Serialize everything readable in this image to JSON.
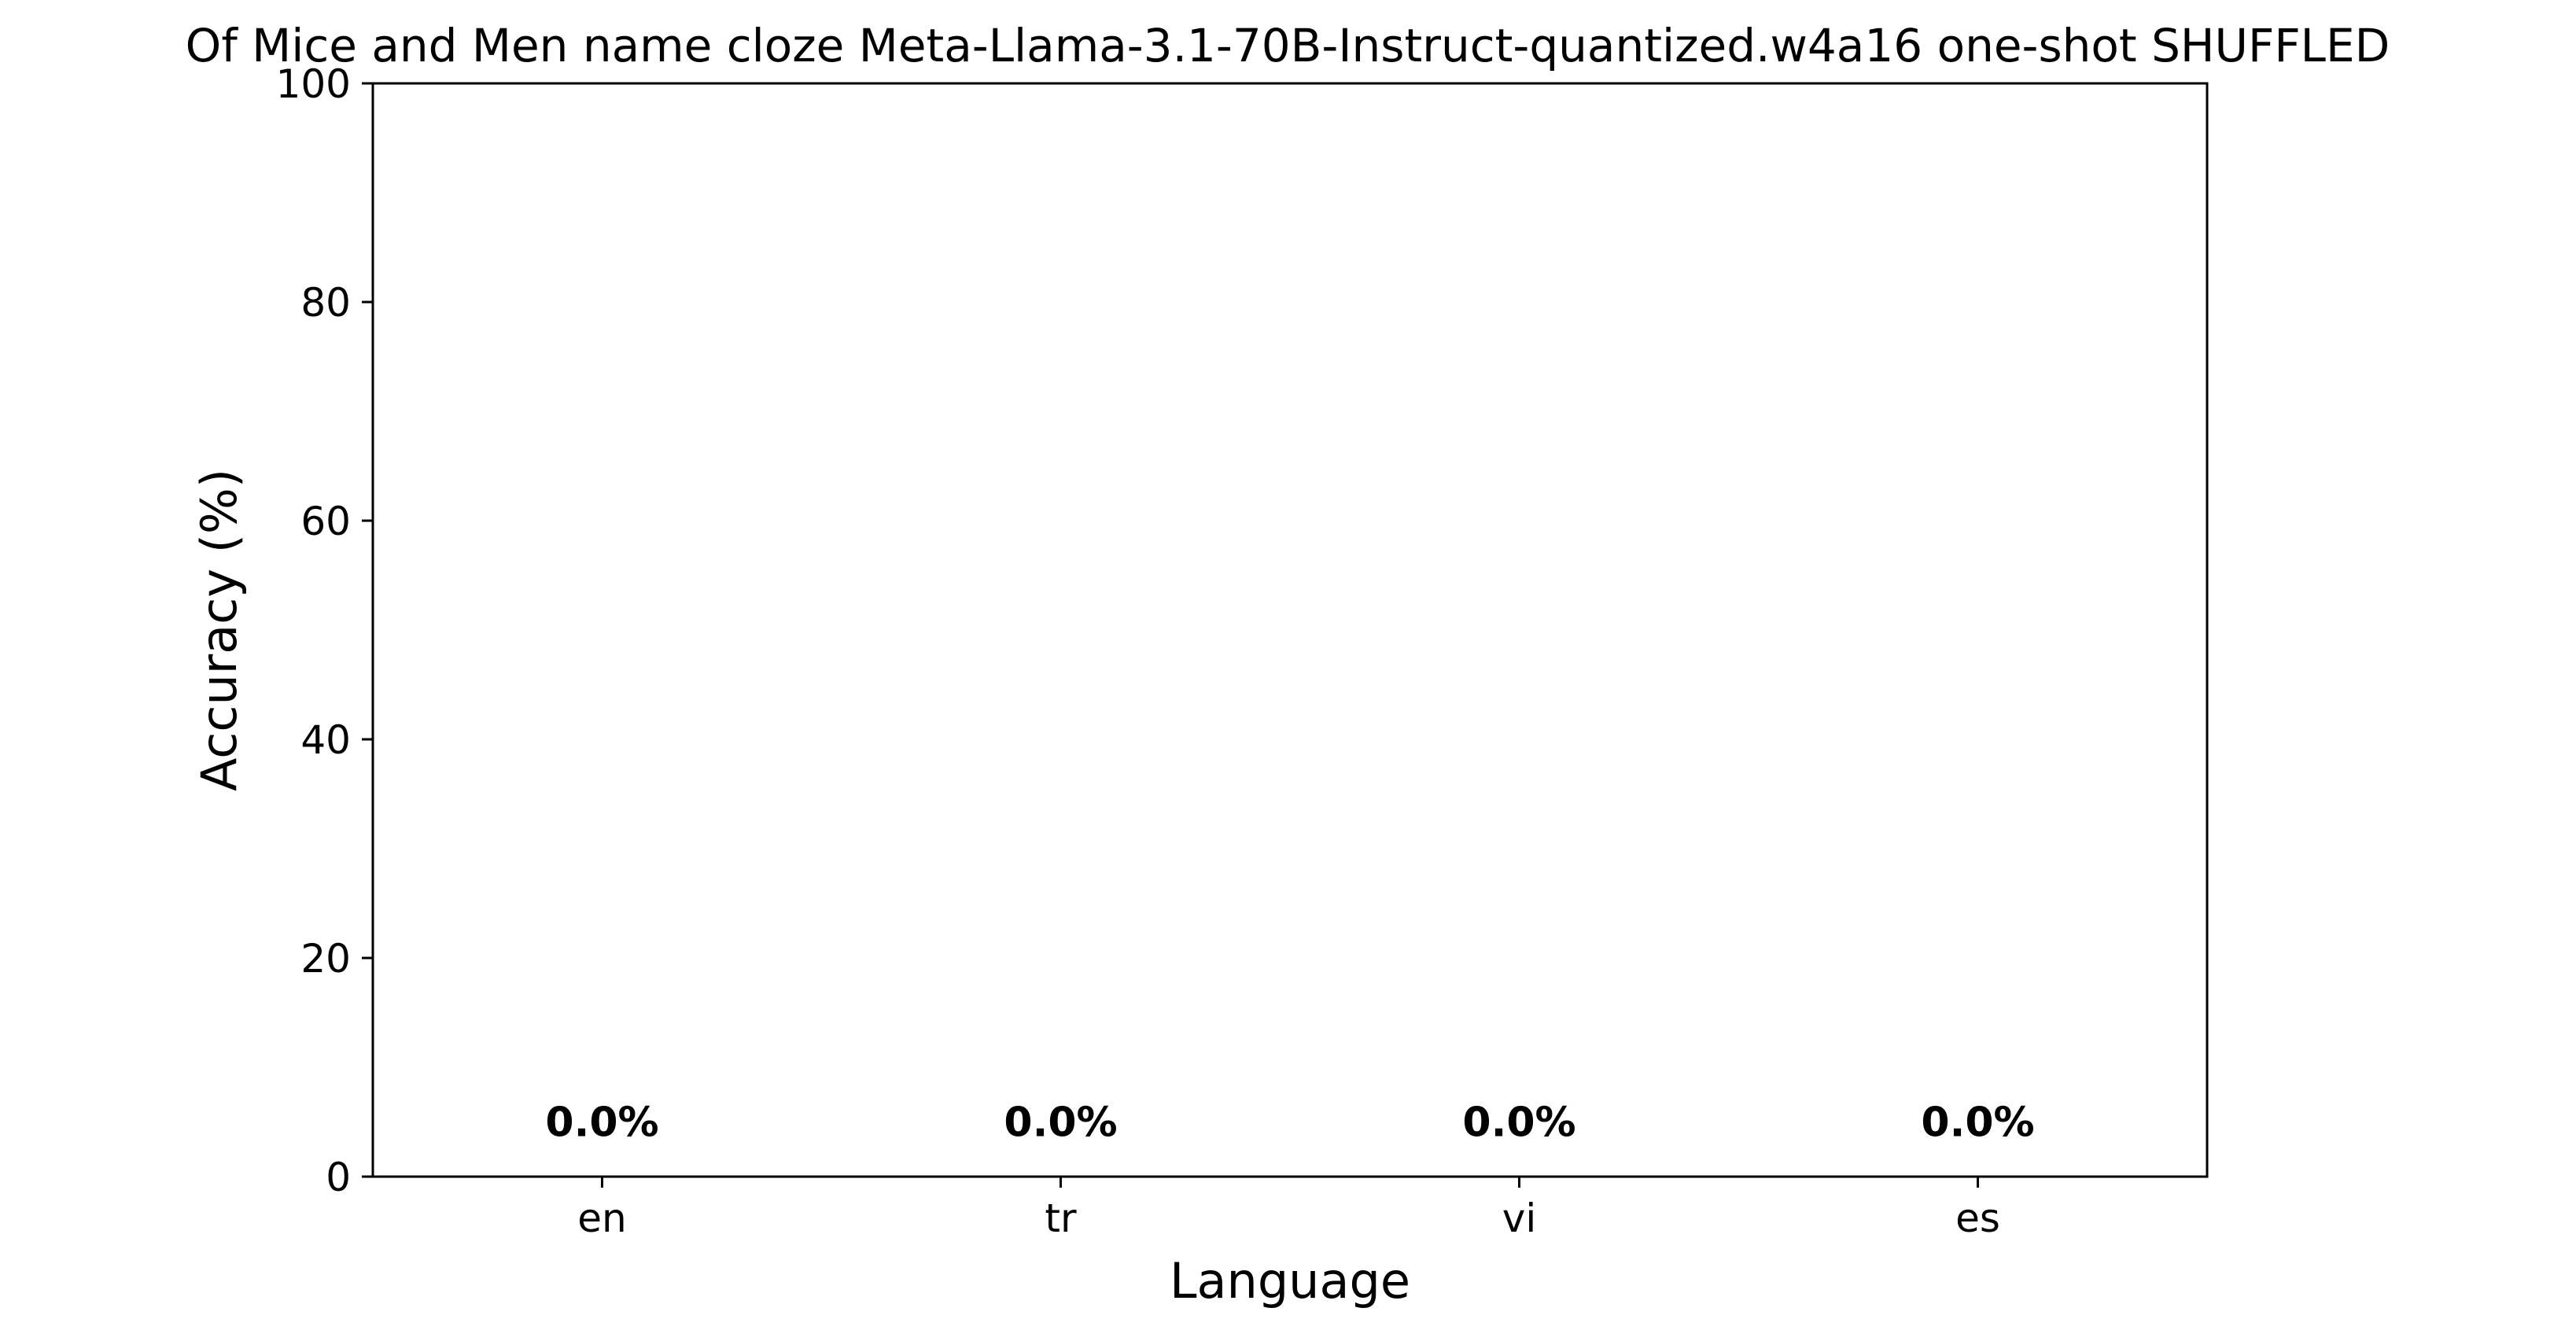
{
  "chart_data": {
    "type": "bar",
    "title": "Of Mice and Men name cloze Meta-Llama-3.1-70B-Instruct-quantized.w4a16 one-shot SHUFFLED",
    "xlabel": "Language",
    "ylabel": "Accuracy (%)",
    "categories": [
      "en",
      "tr",
      "vi",
      "es"
    ],
    "values": [
      0.0,
      0.0,
      0.0,
      0.0
    ],
    "data_labels": [
      "0.0%",
      "0.0%",
      "0.0%",
      "0.0%"
    ],
    "ylim": [
      0,
      100
    ],
    "yticks": [
      0,
      20,
      40,
      60,
      80,
      100
    ],
    "ytick_labels": [
      "0",
      "20",
      "40",
      "60",
      "80",
      "100"
    ],
    "grid": false,
    "legend": "none",
    "bar_color": "#4c72b0"
  }
}
